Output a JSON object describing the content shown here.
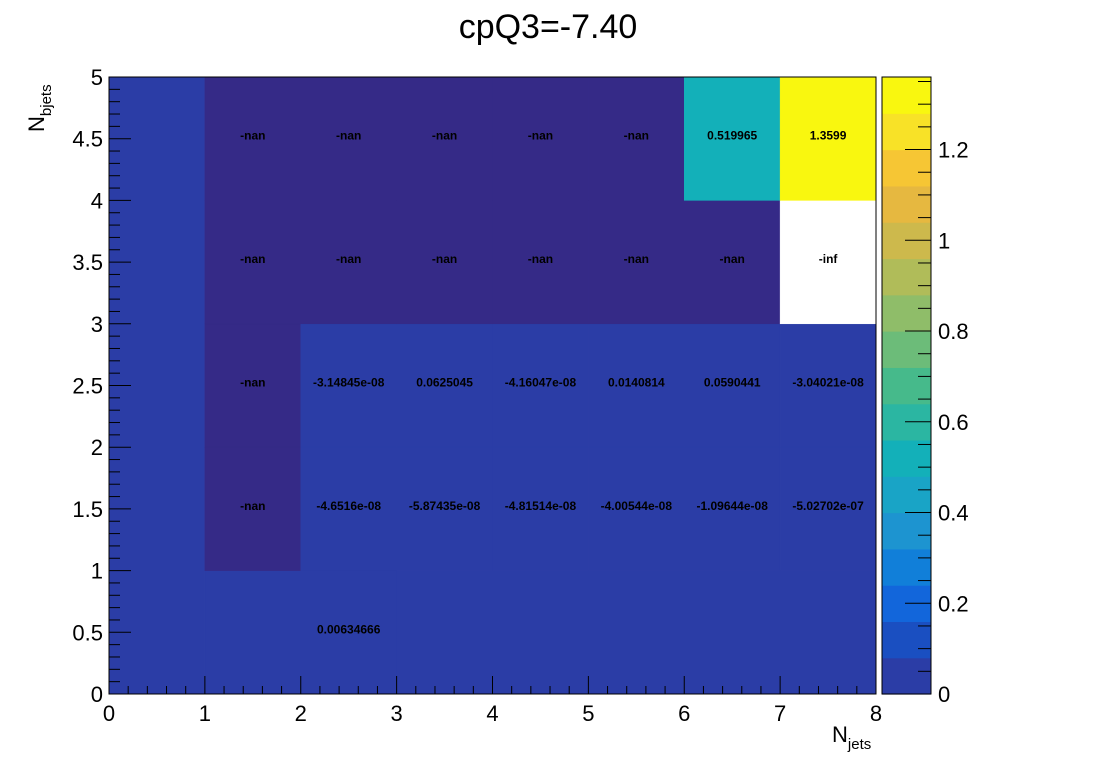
{
  "chart_data": {
    "type": "heatmap",
    "title": "cpQ3=-7.40",
    "xlabel": {
      "main": "N",
      "sub": "jets"
    },
    "ylabel": {
      "main": "N",
      "sub": "bjets"
    },
    "x_edges": [
      0,
      1,
      2,
      3,
      4,
      5,
      6,
      7,
      8
    ],
    "y_edges": [
      0,
      1,
      2,
      3,
      4,
      5
    ],
    "xlim": [
      0,
      8
    ],
    "ylim": [
      0,
      5
    ],
    "x_ticks": [
      "0",
      "1",
      "2",
      "3",
      "4",
      "5",
      "6",
      "7",
      "8"
    ],
    "y_ticks": [
      "0",
      "0.5",
      "1",
      "1.5",
      "2",
      "2.5",
      "3",
      "3.5",
      "4",
      "4.5",
      "5"
    ],
    "colorbar": {
      "range": [
        0,
        1.3599
      ],
      "ticks": [
        "0",
        "0.2",
        "0.4",
        "0.6",
        "0.8",
        "1",
        "1.2"
      ],
      "tick_values": [
        0,
        0.2,
        0.4,
        0.6,
        0.8,
        1.0,
        1.2
      ],
      "colors": [
        "#2b3da6",
        "#1a4fc1",
        "#1266db",
        "#117fd9",
        "#1d94d0",
        "#19a4c6",
        "#13b0b9",
        "#2bb6a2",
        "#46ba8b",
        "#6cbc79",
        "#8fbd69",
        "#b0bc59",
        "#cdb94c",
        "#e6b840",
        "#f6c634",
        "#f8e227",
        "#f9f70f"
      ]
    },
    "cells": [
      {
        "x": [
          0,
          1
        ],
        "y": [
          0,
          5
        ],
        "value": 0,
        "label": ""
      },
      {
        "x": [
          1,
          8
        ],
        "y": [
          0,
          1
        ],
        "value": 0.00634666,
        "label": ""
      },
      {
        "x": [
          2,
          3
        ],
        "y": [
          0,
          1
        ],
        "value": 0.00634666,
        "label": "0.00634666"
      },
      {
        "x": [
          1,
          2
        ],
        "y": [
          1,
          2
        ],
        "value": "-nan",
        "label": "-nan"
      },
      {
        "x": [
          2,
          3
        ],
        "y": [
          1,
          2
        ],
        "value": -4.6516e-08,
        "label": "-4.6516e-08"
      },
      {
        "x": [
          3,
          4
        ],
        "y": [
          1,
          2
        ],
        "value": -5.87435e-08,
        "label": "-5.87435e-08"
      },
      {
        "x": [
          4,
          5
        ],
        "y": [
          1,
          2
        ],
        "value": -4.81514e-08,
        "label": "-4.81514e-08"
      },
      {
        "x": [
          5,
          6
        ],
        "y": [
          1,
          2
        ],
        "value": -4.00544e-08,
        "label": "-4.00544e-08"
      },
      {
        "x": [
          6,
          7
        ],
        "y": [
          1,
          2
        ],
        "value": -1.09644e-08,
        "label": "-1.09644e-08"
      },
      {
        "x": [
          7,
          8
        ],
        "y": [
          1,
          2
        ],
        "value": -5.02702e-07,
        "label": "-5.02702e-07"
      },
      {
        "x": [
          1,
          2
        ],
        "y": [
          2,
          3
        ],
        "value": "-nan",
        "label": "-nan"
      },
      {
        "x": [
          2,
          3
        ],
        "y": [
          2,
          3
        ],
        "value": -3.14845e-08,
        "label": "-3.14845e-08"
      },
      {
        "x": [
          3,
          4
        ],
        "y": [
          2,
          3
        ],
        "value": 0.0625045,
        "label": "0.0625045"
      },
      {
        "x": [
          4,
          5
        ],
        "y": [
          2,
          3
        ],
        "value": -4.16047e-08,
        "label": "-4.16047e-08"
      },
      {
        "x": [
          5,
          6
        ],
        "y": [
          2,
          3
        ],
        "value": 0.0140814,
        "label": "0.0140814"
      },
      {
        "x": [
          6,
          7
        ],
        "y": [
          2,
          3
        ],
        "value": 0.0590441,
        "label": "0.0590441"
      },
      {
        "x": [
          7,
          8
        ],
        "y": [
          2,
          3
        ],
        "value": -3.04021e-08,
        "label": "-3.04021e-08"
      },
      {
        "x": [
          1,
          2
        ],
        "y": [
          3,
          4
        ],
        "value": "-nan",
        "label": "-nan"
      },
      {
        "x": [
          2,
          3
        ],
        "y": [
          3,
          4
        ],
        "value": "-nan",
        "label": "-nan"
      },
      {
        "x": [
          3,
          4
        ],
        "y": [
          3,
          4
        ],
        "value": "-nan",
        "label": "-nan"
      },
      {
        "x": [
          4,
          5
        ],
        "y": [
          3,
          4
        ],
        "value": "-nan",
        "label": "-nan"
      },
      {
        "x": [
          5,
          6
        ],
        "y": [
          3,
          4
        ],
        "value": "-nan",
        "label": "-nan"
      },
      {
        "x": [
          6,
          7
        ],
        "y": [
          3,
          4
        ],
        "value": "-nan",
        "label": "-nan"
      },
      {
        "x": [
          7,
          8
        ],
        "y": [
          3,
          4
        ],
        "value": "-inf",
        "label": "-inf"
      },
      {
        "x": [
          1,
          2
        ],
        "y": [
          4,
          5
        ],
        "value": "-nan",
        "label": "-nan"
      },
      {
        "x": [
          2,
          3
        ],
        "y": [
          4,
          5
        ],
        "value": "-nan",
        "label": "-nan"
      },
      {
        "x": [
          3,
          4
        ],
        "y": [
          4,
          5
        ],
        "value": "-nan",
        "label": "-nan"
      },
      {
        "x": [
          4,
          5
        ],
        "y": [
          4,
          5
        ],
        "value": "-nan",
        "label": "-nan"
      },
      {
        "x": [
          5,
          6
        ],
        "y": [
          4,
          5
        ],
        "value": "-nan",
        "label": "-nan"
      },
      {
        "x": [
          6,
          7
        ],
        "y": [
          4,
          5
        ],
        "value": 0.519965,
        "label": "0.519965"
      },
      {
        "x": [
          7,
          8
        ],
        "y": [
          4,
          5
        ],
        "value": 1.3599,
        "label": "1.3599"
      }
    ],
    "special_colors": {
      "nan": "#352a87",
      "inf": "#ffffff",
      "underflow": "#2b3da6"
    }
  }
}
